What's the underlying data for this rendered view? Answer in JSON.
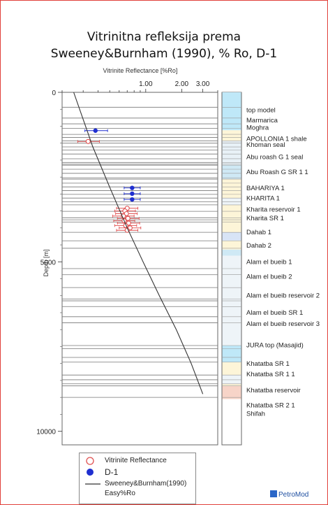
{
  "title_lines": [
    "Vitrinitna refleksija prema",
    "Sweeney&Burnham (1990), % Ro, D-1"
  ],
  "chart_data": {
    "type": "scatter",
    "xlabel": "Vitrinite Reflectance [%Ro]",
    "ylabel": "Depth [m]",
    "x_scale": "log",
    "xlim": [
      0.2,
      4.0
    ],
    "ylim": [
      0,
      10400
    ],
    "x_ticks": [
      {
        "value": 1.0,
        "label": "1.00"
      },
      {
        "value": 2.0,
        "label": "2.00"
      },
      {
        "value": 3.0,
        "label": "3.00"
      }
    ],
    "y_ticks": [
      {
        "value": 0,
        "label": "0"
      },
      {
        "value": 5000,
        "label": "5000"
      },
      {
        "value": 10000,
        "label": "10000"
      }
    ],
    "series": [
      {
        "name": "Vitrinite Reflectance",
        "kind": "points",
        "marker": "open-circle",
        "color": "#e05050",
        "points": [
          {
            "x": 0.33,
            "y": 1450,
            "lo": 0.27,
            "hi": 0.41
          },
          {
            "x": 0.7,
            "y": 3420,
            "lo": 0.57,
            "hi": 0.86
          },
          {
            "x": 0.67,
            "y": 3500,
            "lo": 0.55,
            "hi": 0.82
          },
          {
            "x": 0.69,
            "y": 3580,
            "lo": 0.56,
            "hi": 0.85
          },
          {
            "x": 0.65,
            "y": 3650,
            "lo": 0.53,
            "hi": 0.8
          },
          {
            "x": 0.71,
            "y": 3720,
            "lo": 0.58,
            "hi": 0.88
          },
          {
            "x": 0.66,
            "y": 3790,
            "lo": 0.54,
            "hi": 0.81
          },
          {
            "x": 0.72,
            "y": 3860,
            "lo": 0.58,
            "hi": 0.89
          },
          {
            "x": 0.68,
            "y": 3930,
            "lo": 0.55,
            "hi": 0.84
          },
          {
            "x": 0.74,
            "y": 4000,
            "lo": 0.6,
            "hi": 0.91
          },
          {
            "x": 0.7,
            "y": 4070,
            "lo": 0.57,
            "hi": 0.86
          }
        ]
      },
      {
        "name": "D-1",
        "kind": "points",
        "marker": "filled-circle",
        "color": "#1f2fd0",
        "points": [
          {
            "x": 0.38,
            "y": 1130,
            "lo": 0.31,
            "hi": 0.48
          },
          {
            "x": 0.77,
            "y": 2820,
            "lo": 0.66,
            "hi": 0.9
          },
          {
            "x": 0.77,
            "y": 2990,
            "lo": 0.66,
            "hi": 0.9
          },
          {
            "x": 0.77,
            "y": 3160,
            "lo": 0.66,
            "hi": 0.9
          }
        ]
      },
      {
        "name": "Sweeney&Burnham(1990)",
        "kind": "line",
        "color": "#333333",
        "points": [
          {
            "x": 0.25,
            "y": 0
          },
          {
            "x": 0.36,
            "y": 1600
          },
          {
            "x": 0.5,
            "y": 2800
          },
          {
            "x": 0.7,
            "y": 4000
          },
          {
            "x": 0.95,
            "y": 5000
          },
          {
            "x": 1.3,
            "y": 6000
          },
          {
            "x": 1.8,
            "y": 7000
          },
          {
            "x": 2.4,
            "y": 8000
          },
          {
            "x": 3.0,
            "y": 8900
          }
        ]
      }
    ],
    "layer_boundaries": [
      440,
      760,
      930,
      1060,
      1240,
      1330,
      1430,
      1500,
      1610,
      1700,
      1820,
      1960,
      2070,
      2120,
      2150,
      2270,
      2390,
      2520,
      2560,
      2680,
      2790,
      2900,
      3010,
      3120,
      3230,
      3320,
      3510,
      3700,
      3760,
      3830,
      4130,
      4380,
      4600,
      5200,
      5380,
      5760,
      6100,
      6150,
      6320,
      6620,
      6800,
      7470,
      7560,
      7820,
      7960,
      8340,
      8480,
      8600,
      8660,
      9000
    ],
    "lithology_fills": [
      {
        "from": 0,
        "to": 1120,
        "color": "#bfe8f8"
      },
      {
        "from": 1120,
        "to": 1440,
        "color": "#fdf5d8"
      },
      {
        "from": 1440,
        "to": 2150,
        "color": "#e8f1f7"
      },
      {
        "from": 2150,
        "to": 2560,
        "color": "#cfe9f5"
      },
      {
        "from": 2560,
        "to": 3120,
        "color": "#fdf5d8"
      },
      {
        "from": 3120,
        "to": 3320,
        "color": "#eef4f8"
      },
      {
        "from": 3320,
        "to": 4130,
        "color": "#fdf5d8"
      },
      {
        "from": 4130,
        "to": 4380,
        "color": "#d8e4f6"
      },
      {
        "from": 4380,
        "to": 4640,
        "color": "#fdf5d8"
      },
      {
        "from": 4640,
        "to": 4820,
        "color": "#cfe9f5"
      },
      {
        "from": 4820,
        "to": 7470,
        "color": "#eef4f8"
      },
      {
        "from": 7470,
        "to": 7960,
        "color": "#bfe8f8"
      },
      {
        "from": 7960,
        "to": 8340,
        "color": "#fdf5d8"
      },
      {
        "from": 8340,
        "to": 8600,
        "color": "#eef4f8"
      },
      {
        "from": 8600,
        "to": 8660,
        "color": "#fdf5d8"
      },
      {
        "from": 8660,
        "to": 9050,
        "color": "#f7d4c8"
      }
    ],
    "formation_labels": [
      {
        "depth": 510,
        "label": "top model"
      },
      {
        "depth": 930,
        "label": "Marmarica"
      },
      {
        "depth": 1240,
        "label": "Moghra"
      },
      {
        "depth": 1700,
        "label": "APOLLONIA 1 shale"
      },
      {
        "depth": 1960,
        "label": "Khoman seal"
      },
      {
        "depth": 2460,
        "label": "Abu roash G 1 seal"
      },
      {
        "depth": 3090,
        "label": "Abu Roash G SR 1 1"
      },
      {
        "depth": 3760,
        "label": "BAHARIYA 1"
      },
      {
        "depth": 4180,
        "label": "KHARITA 1"
      },
      {
        "depth": 4650,
        "label": "Kharita reservoir 1"
      },
      {
        "depth": 5010,
        "label": "Kharita SR 1"
      },
      {
        "depth": 5600,
        "label": "Dahab 1"
      },
      {
        "depth": 6150,
        "label": "Dahab 2"
      },
      {
        "depth": 6840,
        "label": "Alam el bueib 1"
      },
      {
        "depth": 7450,
        "label": "Alam el bueib 2"
      },
      {
        "depth": 8240,
        "label": "Alam el bueib reservoir 2"
      },
      {
        "depth": 8950,
        "label": "Alam el bueib SR 1"
      },
      {
        "depth": 9420,
        "label": "Alam el bueib reservoir 3"
      },
      {
        "depth": 10310,
        "label": "JURA top (Masajid)"
      },
      {
        "depth": 11080,
        "label": "Khatatba SR 1"
      },
      {
        "depth": 11510,
        "label": "Khatatba SR 1 1"
      },
      {
        "depth": 12190,
        "label": "Khatatba reservoir"
      },
      {
        "depth": 12810,
        "label": "Khatatba SR 2 1"
      },
      {
        "depth": 13160,
        "label": "Shifah"
      }
    ],
    "legend": {
      "placement": "bottom",
      "items": [
        {
          "label": "Vitrinite Reflectance",
          "symbol": "open-circle",
          "color": "#e05050"
        },
        {
          "label": "D-1",
          "symbol": "filled-circle",
          "color": "#1f2fd0"
        },
        {
          "label": "Sweeney&Burnham(1990)",
          "symbol": "line",
          "color": "#333333"
        },
        {
          "label": "Easy%Ro",
          "symbol": "none",
          "color": ""
        }
      ]
    },
    "grid": false
  },
  "brand": {
    "logo_text": "PetroMod",
    "color": "#1f4fa0"
  }
}
